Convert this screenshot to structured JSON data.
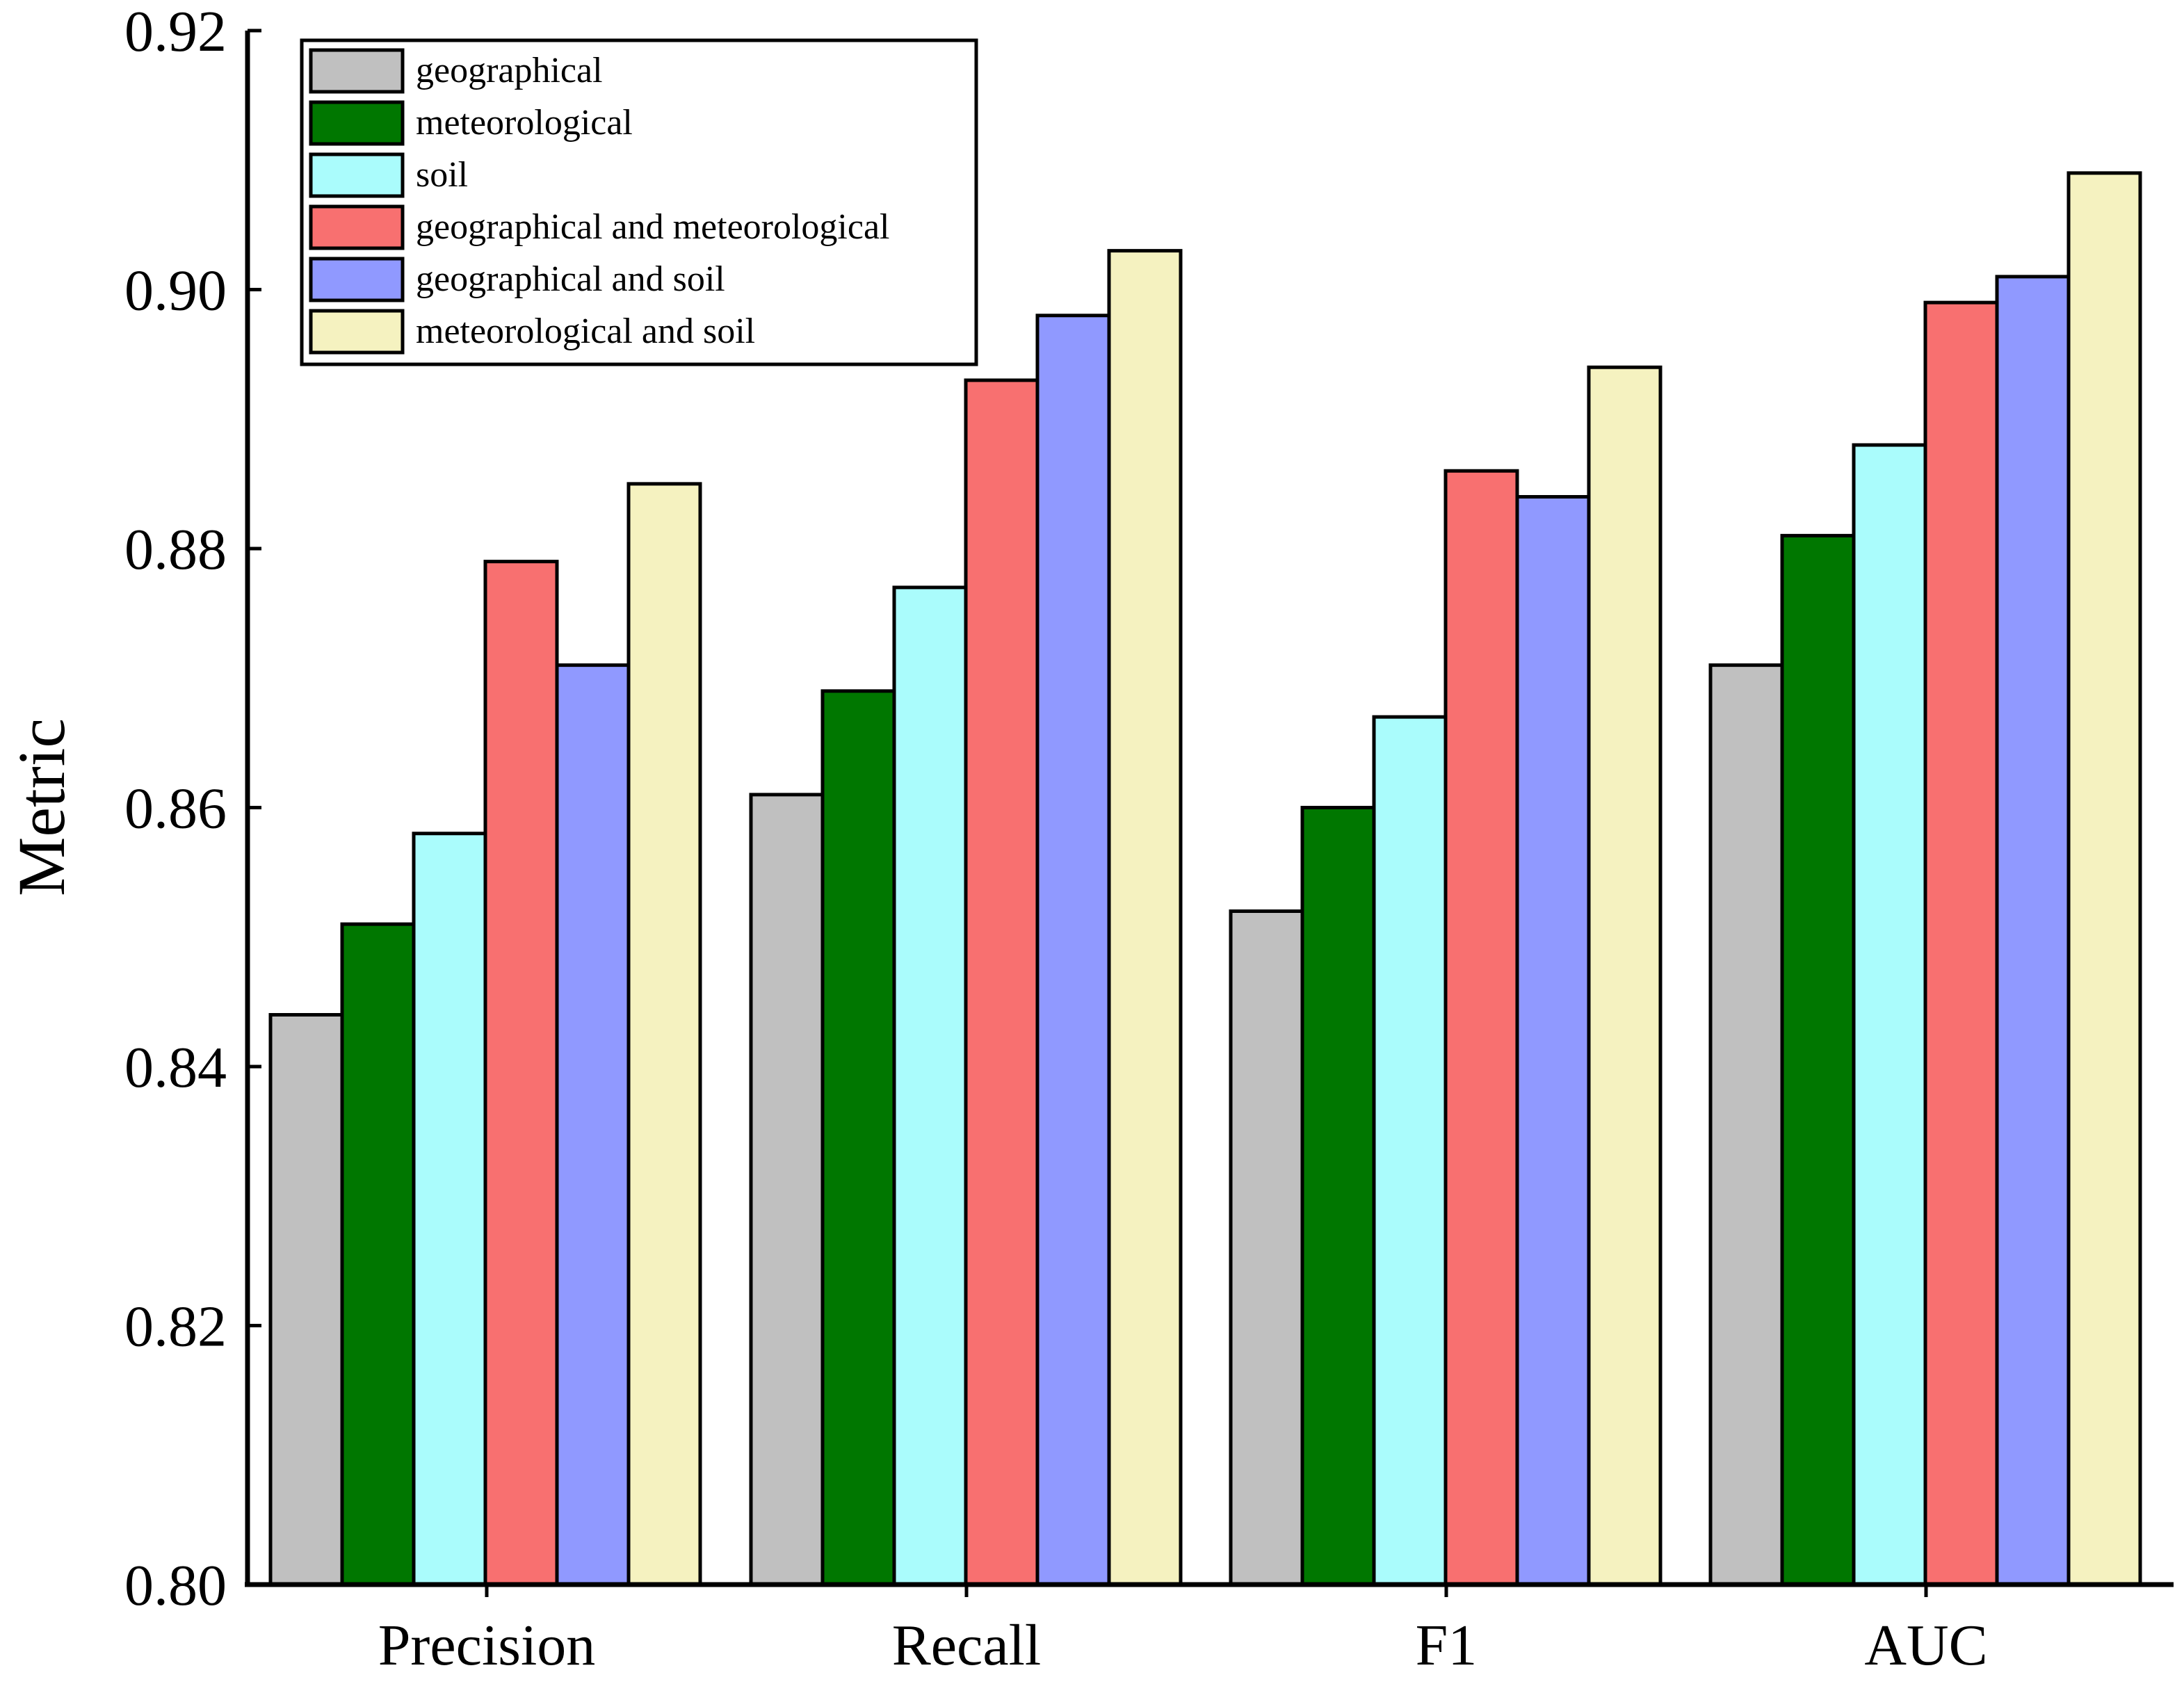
{
  "chart_data": {
    "type": "bar",
    "title": "",
    "xlabel": "",
    "ylabel": "Metric",
    "ylim": [
      0.8,
      0.92
    ],
    "yticks": [
      "0.80",
      "0.82",
      "0.84",
      "0.86",
      "0.88",
      "0.90",
      "0.92"
    ],
    "grid": false,
    "legend_position": "top-left",
    "categories": [
      "Precision",
      "Recall",
      "F1",
      "AUC"
    ],
    "series": [
      {
        "name": "geographical",
        "color": "#c0c0c0",
        "values": [
          0.844,
          0.861,
          0.852,
          0.871
        ]
      },
      {
        "name": "meteorological",
        "color": "#007700",
        "values": [
          0.851,
          0.869,
          0.86,
          0.881
        ]
      },
      {
        "name": "soil",
        "color": "#aafcfc",
        "values": [
          0.858,
          0.877,
          0.867,
          0.888
        ]
      },
      {
        "name": "geographical and meteorological",
        "color": "#f87070",
        "values": [
          0.879,
          0.893,
          0.886,
          0.899
        ]
      },
      {
        "name": "geographical and soil",
        "color": "#9099ff",
        "values": [
          0.871,
          0.898,
          0.884,
          0.901
        ]
      },
      {
        "name": "meteorological and soil",
        "color": "#f5f2c0",
        "values": [
          0.885,
          0.903,
          0.894,
          0.909
        ]
      }
    ]
  }
}
